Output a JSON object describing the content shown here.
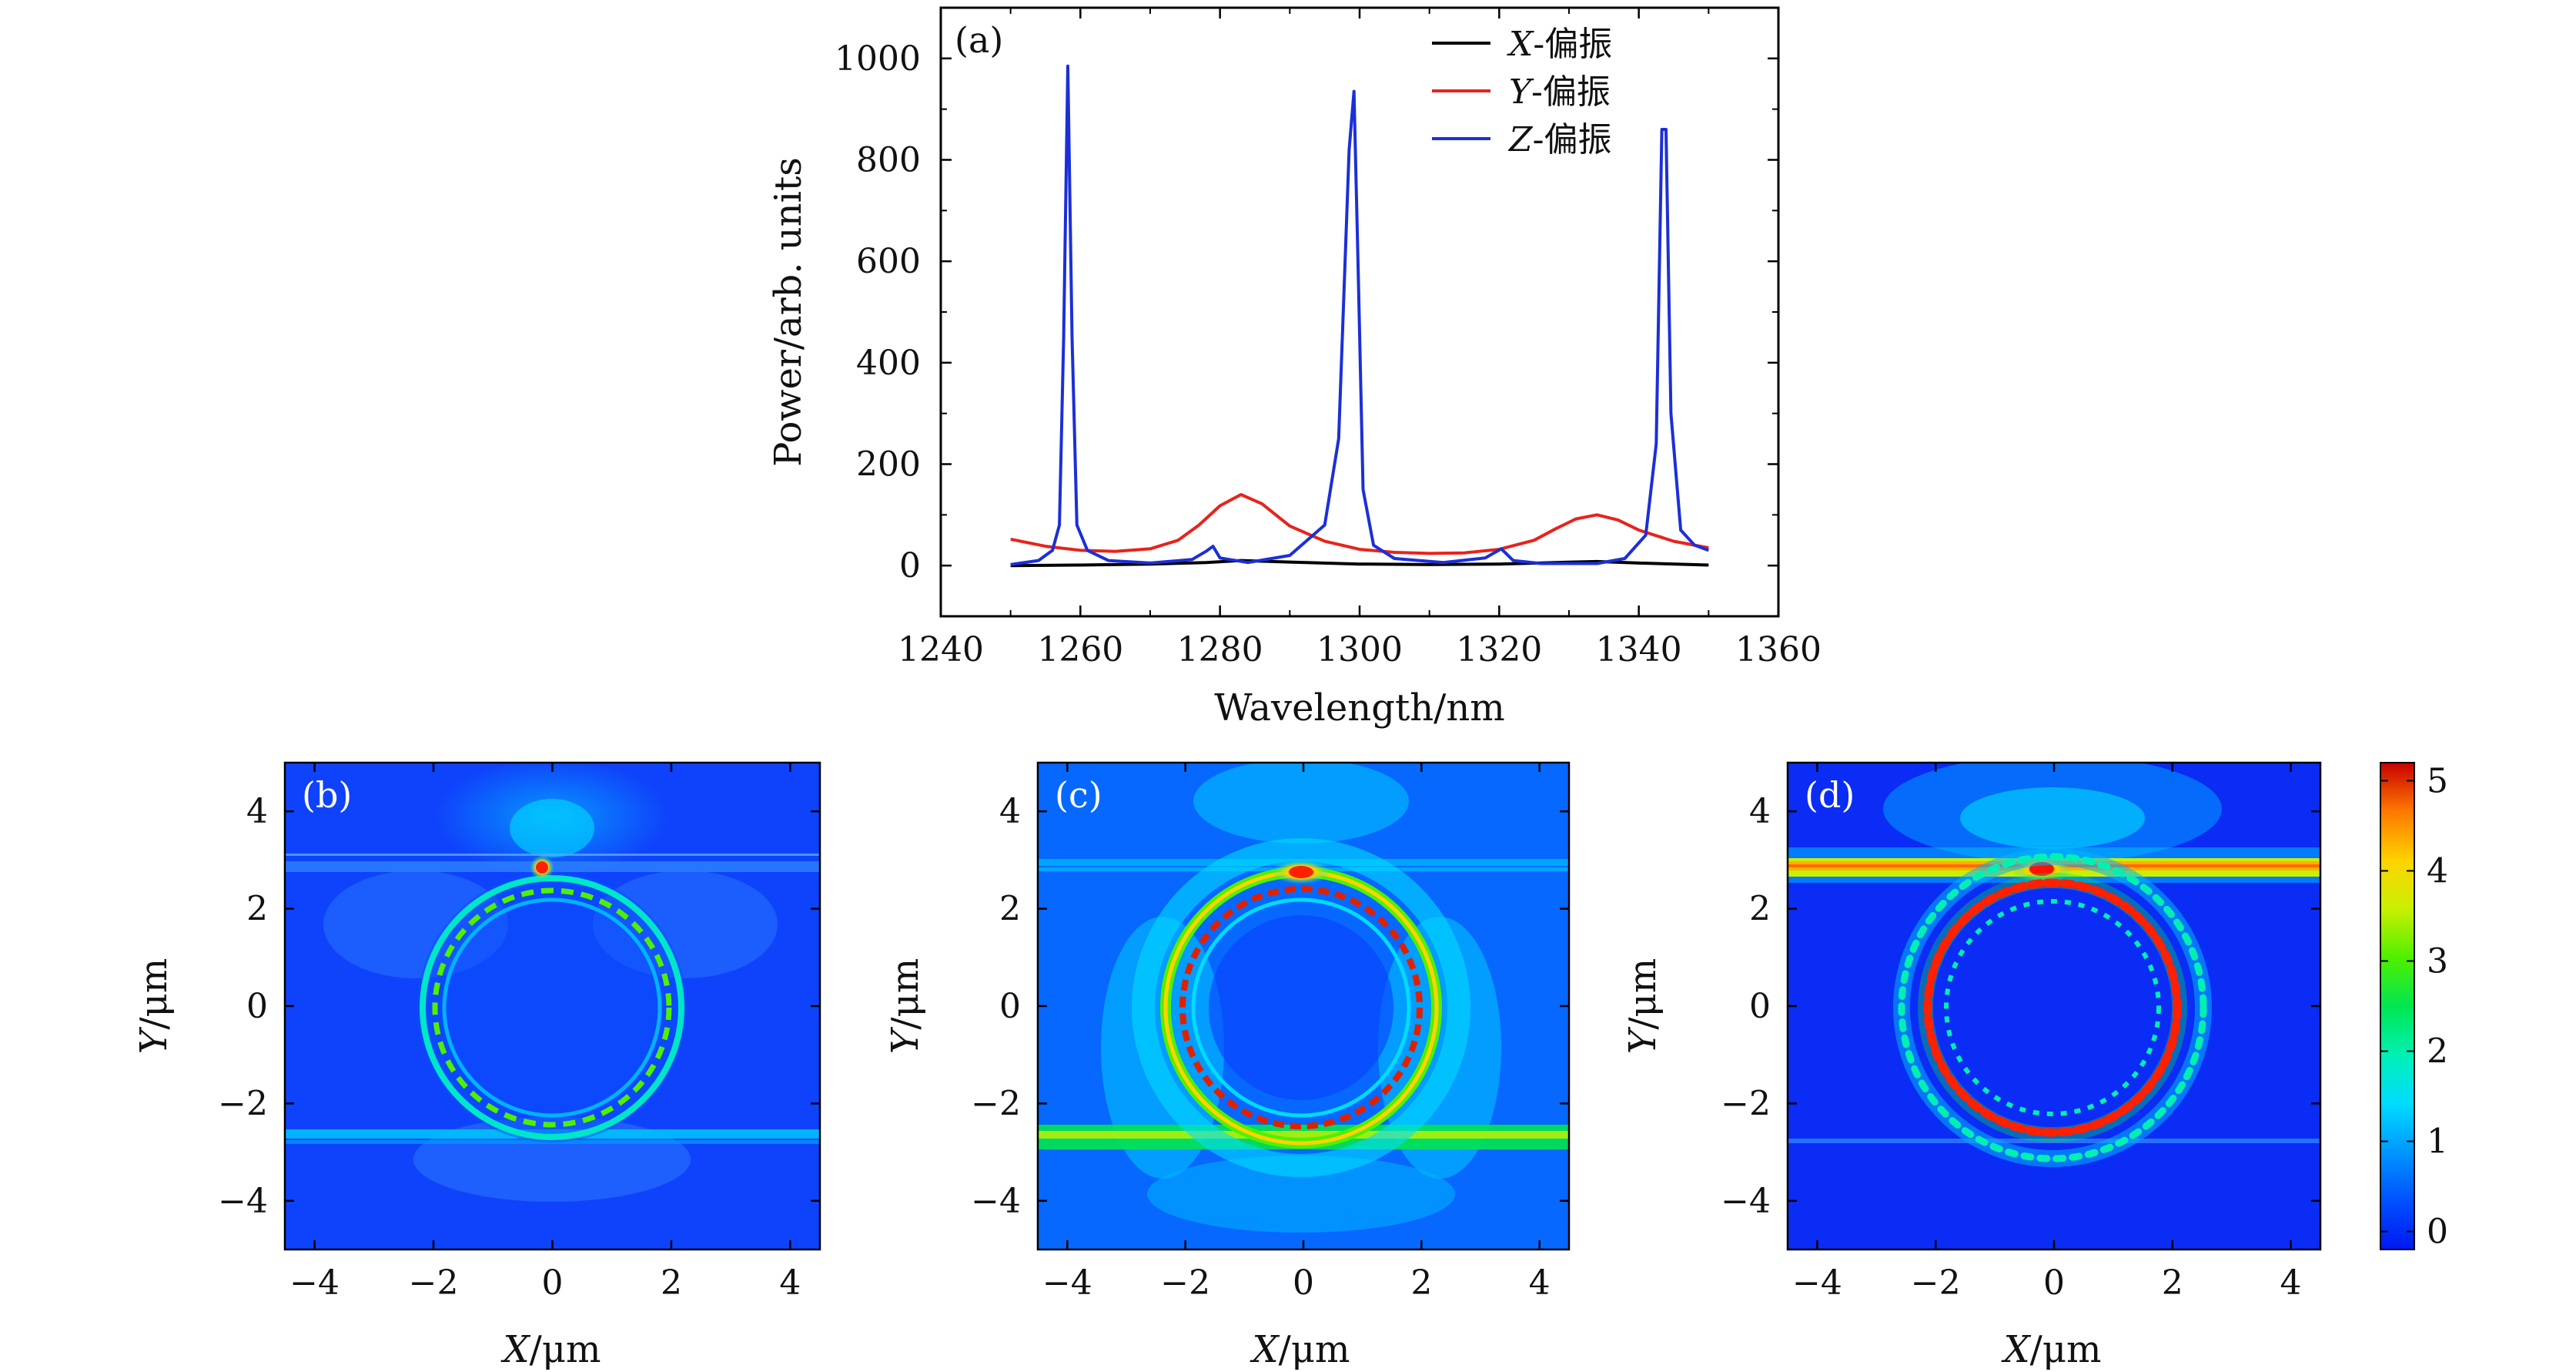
{
  "chart_data": [
    {
      "panel": "(a)",
      "type": "line",
      "xlabel": "Wavelength/nm",
      "ylabel": "Power/arb. units",
      "xlim": [
        1240,
        1360
      ],
      "ylim": [
        -100,
        1100
      ],
      "xticks": [
        1240,
        1260,
        1280,
        1300,
        1320,
        1340,
        1360
      ],
      "yticks": [
        0,
        200,
        400,
        600,
        800,
        1000
      ],
      "legend_position": "top-right",
      "series": [
        {
          "name": "X-偏振",
          "label_var": "X",
          "label_text": "-偏振",
          "color": "#000000",
          "x": [
            1250,
            1260,
            1270,
            1278,
            1283,
            1290,
            1300,
            1310,
            1320,
            1328,
            1334,
            1340,
            1350
          ],
          "y": [
            0,
            1,
            3,
            6,
            10,
            7,
            3,
            2,
            3,
            6,
            8,
            5,
            1
          ]
        },
        {
          "name": "Y-偏振",
          "label_var": "Y",
          "label_text": "-偏振",
          "color": "#e8231c",
          "x": [
            1250,
            1255,
            1260,
            1265,
            1270,
            1274,
            1277,
            1280,
            1283,
            1286,
            1290,
            1295,
            1300,
            1305,
            1310,
            1315,
            1320,
            1325,
            1328,
            1331,
            1334,
            1337,
            1340,
            1345,
            1350
          ],
          "y": [
            52,
            38,
            30,
            28,
            33,
            50,
            80,
            118,
            140,
            122,
            78,
            48,
            32,
            26,
            24,
            25,
            32,
            50,
            72,
            92,
            100,
            90,
            70,
            48,
            35
          ]
        },
        {
          "name": "Z-偏振",
          "label_var": "Z",
          "label_text": "-偏振",
          "color": "#1b2fd8",
          "x": [
            1250,
            1254,
            1256,
            1257,
            1257.6,
            1258.2,
            1258.8,
            1259.5,
            1261,
            1264,
            1270,
            1276,
            1278,
            1279,
            1280,
            1284,
            1290,
            1295,
            1297,
            1298.5,
            1299.2,
            1299.8,
            1300.5,
            1302,
            1305,
            1312,
            1318,
            1320.3,
            1322,
            1326,
            1334,
            1338,
            1341,
            1342.5,
            1343.3,
            1343.9,
            1344.6,
            1346,
            1348,
            1350
          ],
          "y": [
            2,
            10,
            30,
            80,
            450,
            985,
            450,
            80,
            30,
            10,
            5,
            12,
            28,
            38,
            15,
            6,
            20,
            80,
            250,
            820,
            935,
            580,
            150,
            40,
            14,
            6,
            15,
            33,
            10,
            4,
            4,
            14,
            60,
            240,
            860,
            860,
            300,
            70,
            40,
            30
          ]
        }
      ]
    },
    {
      "panel": "(b)",
      "type": "heatmap",
      "xlabel": "X/μm",
      "ylabel": "Y/μm",
      "xlim": [
        -4.5,
        4.5
      ],
      "ylim": [
        -5,
        5
      ],
      "xticks": [
        -4,
        -2,
        0,
        2,
        4
      ],
      "yticks": [
        -4,
        -2,
        0,
        2,
        4
      ],
      "ring_center": [
        0,
        0
      ],
      "ring_radius": 2.3,
      "waveguides_y": [
        2.8,
        -2.8
      ]
    },
    {
      "panel": "(c)",
      "type": "heatmap",
      "xlabel": "X/μm",
      "ylabel": "Y/μm",
      "xlim": [
        -4.5,
        4.5
      ],
      "ylim": [
        -5,
        5
      ],
      "xticks": [
        -4,
        -2,
        0,
        2,
        4
      ],
      "yticks": [
        -4,
        -2,
        0,
        2,
        4
      ],
      "ring_center": [
        0,
        0
      ],
      "ring_radius": 2.3,
      "waveguides_y": [
        2.8,
        -2.8
      ]
    },
    {
      "panel": "(d)",
      "type": "heatmap",
      "xlabel": "X/μm",
      "ylabel": "Y/μm",
      "xlim": [
        -4.5,
        4.5
      ],
      "ylim": [
        -5,
        5
      ],
      "xticks": [
        -4,
        -2,
        0,
        2,
        4
      ],
      "yticks": [
        -4,
        -2,
        0,
        2,
        4
      ],
      "ring_center": [
        0,
        0
      ],
      "ring_radius": 2.1,
      "waveguides_y": [
        2.8,
        -2.8
      ]
    }
  ],
  "colorbar": {
    "range": [
      -0.2,
      5.2
    ],
    "ticks": [
      0,
      1,
      2,
      3,
      4,
      5
    ],
    "colors": [
      "#0018f0",
      "#0050ff",
      "#0096ff",
      "#00dcff",
      "#00f0b4",
      "#00e650",
      "#50f000",
      "#c8f000",
      "#ffd200",
      "#ff7800",
      "#f02800",
      "#c80000"
    ]
  }
}
